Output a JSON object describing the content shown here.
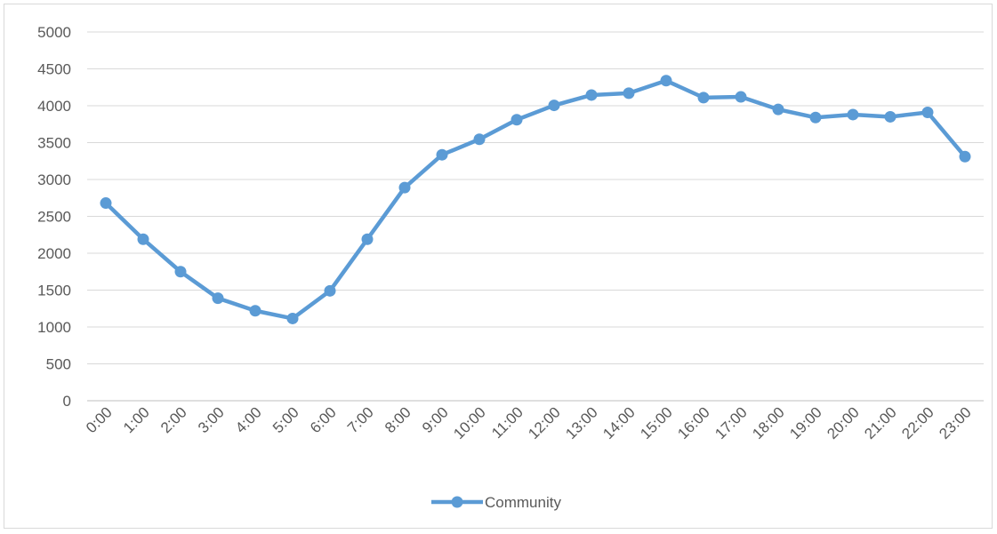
{
  "chart_data": {
    "type": "line",
    "title": "",
    "xlabel": "",
    "ylabel": "",
    "categories": [
      "0:00",
      "1:00",
      "2:00",
      "3:00",
      "4:00",
      "5:00",
      "6:00",
      "7:00",
      "8:00",
      "9:00",
      "10:00",
      "11:00",
      "12:00",
      "13:00",
      "14:00",
      "15:00",
      "16:00",
      "17:00",
      "18:00",
      "19:00",
      "20:00",
      "21:00",
      "22:00",
      "23:00"
    ],
    "series": [
      {
        "name": "Community",
        "values": [
          2680,
          2190,
          1750,
          1390,
          1220,
          1115,
          1490,
          2190,
          2890,
          3335,
          3545,
          3810,
          4005,
          4145,
          4170,
          4340,
          4110,
          4120,
          3950,
          3840,
          3880,
          3850,
          3910,
          3310
        ]
      }
    ],
    "ylim": [
      0,
      5000
    ],
    "yticks": [
      0,
      500,
      1000,
      1500,
      2000,
      2500,
      3000,
      3500,
      4000,
      4500,
      5000
    ],
    "grid": true,
    "legend": "bottom",
    "colors": {
      "line": "#5b9bd5",
      "grid": "#d9d9d9",
      "text": "#595959"
    }
  }
}
